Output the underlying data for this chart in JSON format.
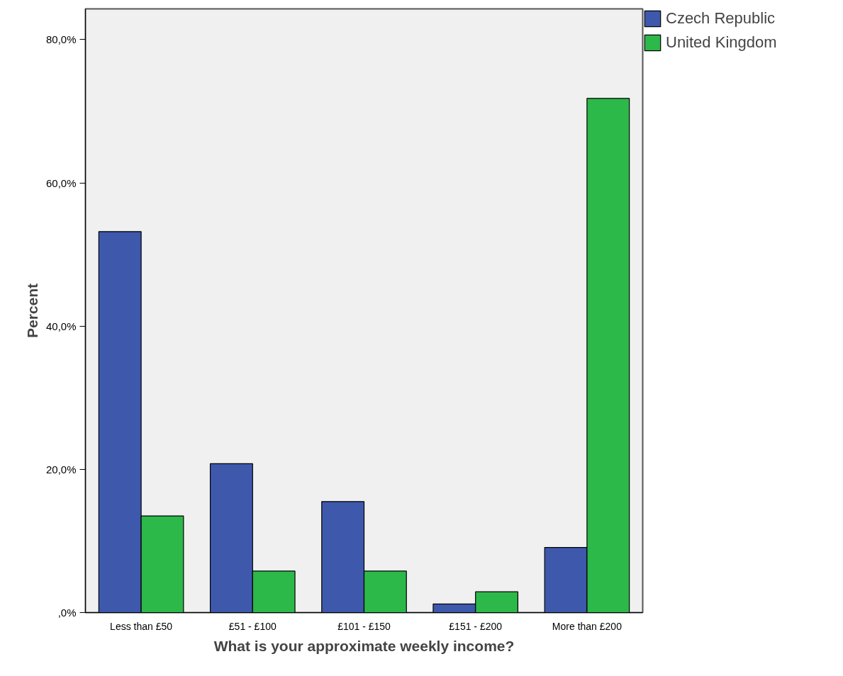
{
  "chart_data": {
    "type": "bar",
    "xlabel": "What is your approximate weekly income?",
    "ylabel": "Percent",
    "categories": [
      "Less than £50",
      "£51 - £100",
      "£101 - £150",
      "£151 - £200",
      "More than £200"
    ],
    "series": [
      {
        "name": "Czech Republic",
        "color": "#3e58ac",
        "values": [
          53.2,
          20.8,
          15.5,
          1.2,
          9.1
        ]
      },
      {
        "name": "United Kingdom",
        "color": "#2db84a",
        "values": [
          13.5,
          5.8,
          5.8,
          2.9,
          71.8
        ]
      }
    ],
    "ylim": [
      0,
      84.3
    ],
    "yticks": [
      {
        "value": 0,
        "label": ",0%"
      },
      {
        "value": 20,
        "label": "20,0%"
      },
      {
        "value": 40,
        "label": "40,0%"
      },
      {
        "value": 60,
        "label": "60,0%"
      },
      {
        "value": 80,
        "label": "80,0%"
      }
    ],
    "grid": false,
    "legend": "top right"
  }
}
